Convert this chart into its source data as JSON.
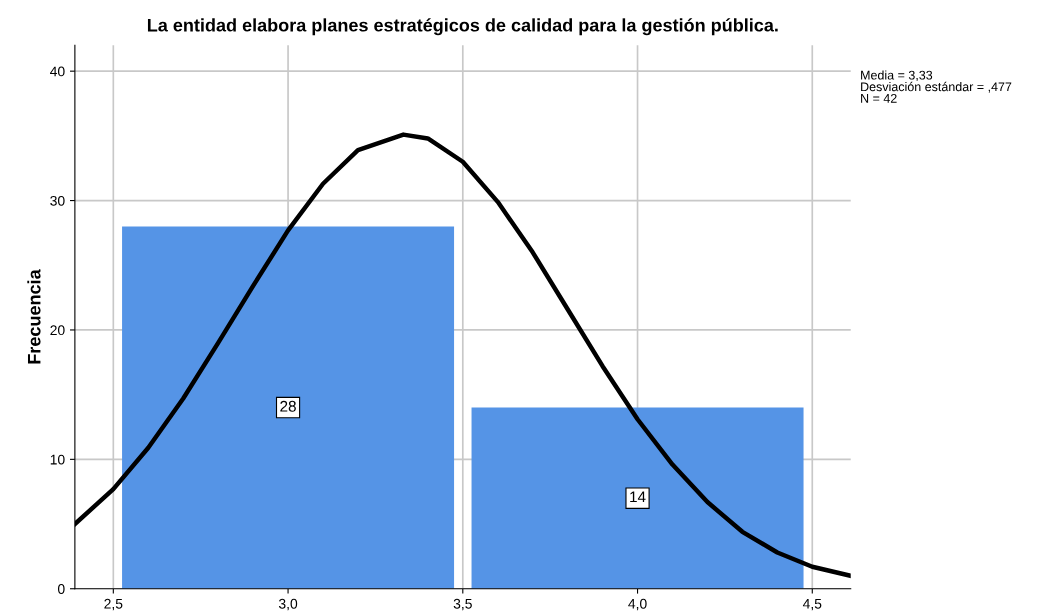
{
  "chart_data": {
    "type": "histogram",
    "title": "La entidad elabora planes estratégicos de calidad para la gestión pública.",
    "ylabel": "Frecuencia",
    "bins": [
      2.5,
      3.5,
      4.5
    ],
    "values": [
      28,
      14
    ],
    "color": "#5594e6",
    "value_labels": [
      "28",
      "14"
    ],
    "series": [
      {
        "type": "line",
        "color": "#000000",
        "x": [
          2.39,
          2.5,
          2.6,
          2.7,
          2.8,
          2.9,
          3.0,
          3.1,
          3.2,
          3.33,
          3.4,
          3.5,
          3.6,
          3.7,
          3.8,
          3.9,
          4.0,
          4.1,
          4.2,
          4.3,
          4.4,
          4.5,
          4.61
        ],
        "values": [
          5.0,
          7.7,
          10.9,
          14.7,
          19.0,
          23.4,
          27.7,
          31.3,
          33.9,
          35.1,
          34.8,
          33.0,
          29.9,
          26.0,
          21.6,
          17.2,
          13.1,
          9.6,
          6.7,
          4.4,
          2.8,
          1.7,
          1.0
        ]
      }
    ],
    "xlim": [
      2.39,
      4.61
    ],
    "xticks": [
      {
        "value": 2.5,
        "label": "2,5"
      },
      {
        "value": 3.0,
        "label": "3,0"
      },
      {
        "value": 3.5,
        "label": "3,5"
      },
      {
        "value": 4.0,
        "label": "4,0"
      },
      {
        "value": 4.5,
        "label": "4,5"
      }
    ],
    "ylim": [
      0,
      42
    ],
    "yticks": [
      0,
      10,
      20,
      30,
      40
    ],
    "grid": true,
    "annotations": [
      "Media = 3,33",
      "Desviación estándar = ,477",
      "N = 42"
    ]
  }
}
